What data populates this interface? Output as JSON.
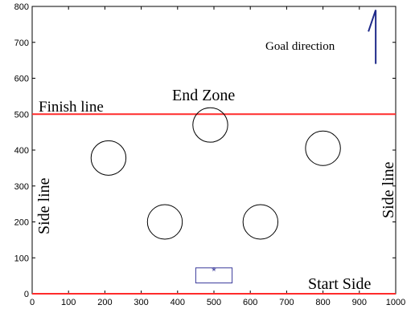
{
  "chart_data": {
    "type": "scatter",
    "xlim": [
      0,
      1000
    ],
    "ylim": [
      0,
      800
    ],
    "x_ticks": [
      0,
      100,
      200,
      300,
      400,
      500,
      600,
      700,
      800,
      900,
      1000
    ],
    "y_ticks": [
      0,
      100,
      200,
      300,
      400,
      500,
      600,
      700,
      800
    ],
    "grid": false,
    "colors": {
      "boundary": "#ff2b2b",
      "goal_arrow": "#1f2a8a",
      "start_box": "#3a3a9a",
      "obstacles": "#000000"
    },
    "lines": [
      {
        "name": "Finish line",
        "y": 500,
        "x": [
          0,
          1000
        ]
      },
      {
        "name": "Start Side",
        "y": 0,
        "x": [
          0,
          1000
        ]
      }
    ],
    "obstacles": [
      {
        "x": 210,
        "y": 378,
        "r": 48
      },
      {
        "x": 490,
        "y": 470,
        "r": 48
      },
      {
        "x": 800,
        "y": 405,
        "r": 48
      },
      {
        "x": 365,
        "y": 200,
        "r": 48
      },
      {
        "x": 628,
        "y": 200,
        "r": 48
      }
    ],
    "start_box": {
      "x": [
        450,
        550
      ],
      "y": [
        30,
        72
      ]
    },
    "start_marker": {
      "x": 500,
      "y": 68,
      "symbol": "*"
    },
    "goal_arrow": {
      "x": [
        925,
        945,
        945
      ],
      "y": [
        730,
        790,
        640
      ]
    },
    "annotations": {
      "goal_direction": "Goal direction",
      "end_zone": "End Zone",
      "finish_line": "Finish line",
      "start_side": "Start Side",
      "side_line_left": "Side line",
      "side_line_right": "Side line"
    }
  }
}
